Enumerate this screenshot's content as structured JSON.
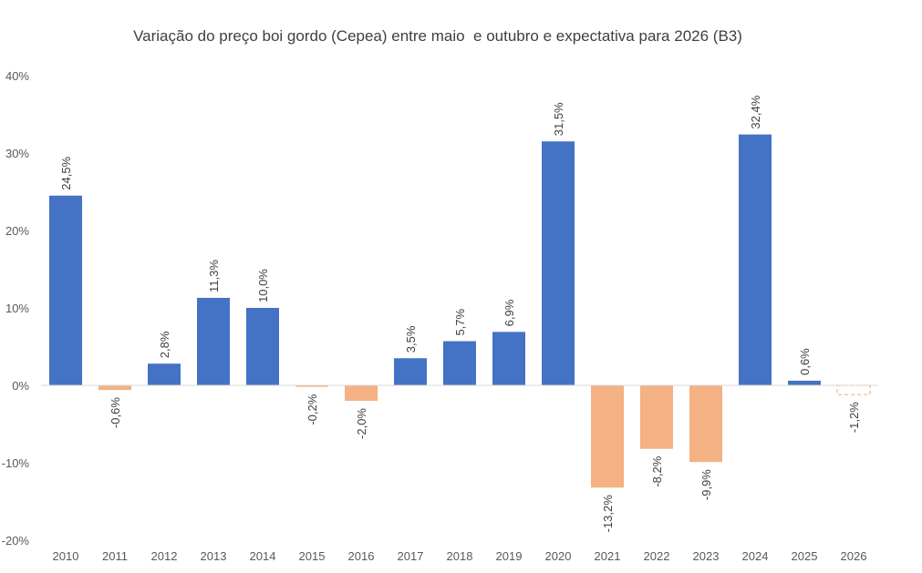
{
  "chart_data": {
    "type": "bar",
    "title": "Variação do preço boi gordo (Cepea) entre maio  e outubro e expectativa para 2026 (B3)",
    "xlabel": "",
    "ylabel": "",
    "ylim": [
      -20,
      40
    ],
    "yticks": [
      40,
      30,
      20,
      10,
      0,
      -10,
      -20
    ],
    "ytick_labels": [
      "40%",
      "30%",
      "20%",
      "10%",
      "0%",
      "-10%",
      "-20%"
    ],
    "grid": false,
    "categories": [
      "2010",
      "2011",
      "2012",
      "2013",
      "2014",
      "2015",
      "2016",
      "2017",
      "2018",
      "2019",
      "2020",
      "2021",
      "2022",
      "2023",
      "2024",
      "2025",
      "2026"
    ],
    "values": [
      24.5,
      -0.6,
      2.8,
      11.3,
      10.0,
      -0.2,
      -2.0,
      3.5,
      5.7,
      6.9,
      31.5,
      -13.2,
      -8.2,
      -9.9,
      32.4,
      0.6,
      -1.2
    ],
    "value_labels": [
      "24,5%",
      "-0,6%",
      "2,8%",
      "11,3%",
      "10,0%",
      "-0,2%",
      "-2,0%",
      "3,5%",
      "5,7%",
      "6,9%",
      "31,5%",
      "-13,2%",
      "-8,2%",
      "-9,9%",
      "32,4%",
      "0,6%",
      "-1,2%"
    ],
    "styles": [
      "solid",
      "solid",
      "solid",
      "solid",
      "solid",
      "solid",
      "solid",
      "solid",
      "solid",
      "solid",
      "solid",
      "solid",
      "solid",
      "solid",
      "solid",
      "solid",
      "dashed-outline"
    ],
    "colors": {
      "positive": "#4472C4",
      "negative": "#F4B183",
      "axis": "#D9D9D9"
    }
  }
}
